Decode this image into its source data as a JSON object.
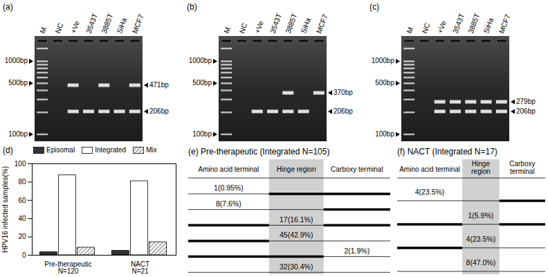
{
  "gels": [
    {
      "label": "(a)",
      "lanes": [
        "M",
        "NC",
        "+Ve",
        "3543T",
        "3885T",
        "SiHa",
        "MCF7"
      ],
      "bands": [
        [
          100,
          200,
          300,
          400,
          500,
          600,
          700,
          800,
          900,
          1000,
          1500
        ],
        [],
        [
          471,
          206
        ],
        [
          206
        ],
        [
          471,
          206
        ],
        [
          206
        ],
        [
          471,
          206
        ]
      ],
      "markers": [
        {
          "value": 1000,
          "label": "1000bp"
        },
        {
          "value": 500,
          "label": "500bp"
        },
        {
          "value": 100,
          "label": "100bp"
        }
      ],
      "band_labels": [
        {
          "value": 471,
          "label": "471bp"
        },
        {
          "value": 206,
          "label": "206bp"
        }
      ]
    },
    {
      "label": "(b)",
      "lanes": [
        "M",
        "NC",
        "+Ve",
        "3543T",
        "3885T",
        "SiHa",
        "MCF7"
      ],
      "bands": [
        [
          100,
          200,
          300,
          400,
          500,
          600,
          700,
          800,
          900,
          1000,
          1500
        ],
        [],
        [
          206
        ],
        [
          206
        ],
        [
          370,
          206
        ],
        [
          206
        ],
        [
          370
        ]
      ],
      "markers": [
        {
          "value": 1000,
          "label": "1000bp"
        },
        {
          "value": 500,
          "label": "500bp"
        },
        {
          "value": 100,
          "label": "100bp"
        }
      ],
      "band_labels": [
        {
          "value": 370,
          "label": "370bp"
        },
        {
          "value": 206,
          "label": "206bp"
        }
      ]
    },
    {
      "label": "(c)",
      "lanes": [
        "M",
        "NC",
        "+Ve",
        "3543T",
        "3885T",
        "SiHa",
        "MCF7"
      ],
      "bands": [
        [
          100,
          200,
          300,
          400,
          500,
          600,
          700,
          800,
          900,
          1000,
          1500
        ],
        [],
        [
          279,
          206
        ],
        [
          279,
          206
        ],
        [
          279,
          206
        ],
        [
          279,
          206
        ],
        [
          279,
          206
        ]
      ],
      "markers": [
        {
          "value": 1000,
          "label": "1000bp"
        },
        {
          "value": 500,
          "label": "500bp"
        },
        {
          "value": 100,
          "label": "100bp"
        }
      ],
      "band_labels": [
        {
          "value": 279,
          "label": "279bp"
        },
        {
          "value": 206,
          "label": "206bp"
        }
      ]
    }
  ],
  "chart_data": {
    "type": "bar",
    "title": "(d)",
    "categories": [
      "Pre-therapeutic\nN=120",
      "NACT\nN=21"
    ],
    "series": [
      {
        "name": "Episomal",
        "color": "#333333",
        "values": [
          3.3,
          4.8
        ]
      },
      {
        "name": "Integrated",
        "color": "#ffffff",
        "values": [
          87.5,
          81
        ]
      },
      {
        "name": "Mix",
        "color": "#555555",
        "line_style": "hatched",
        "values": [
          8.3,
          14.3
        ]
      }
    ],
    "y_label": "HPV16 infected samples(%)",
    "ylim": [
      0,
      100
    ],
    "yticks": [
      0,
      20,
      40,
      60,
      80,
      100
    ],
    "legend": "top",
    "grid": false
  },
  "diagrams": [
    {
      "label": "(e)",
      "title": "Pre-therapeutic (Integrated N=105)",
      "columns": [
        "Amino acid terminal",
        "Hinge region",
        "Carboxy terminal"
      ],
      "rows": [
        {
          "text": "1(0.95%)",
          "region": 0,
          "retained": [
            1,
            2
          ]
        },
        {
          "text": "8(7.6%)",
          "region": 0,
          "retained": [
            2
          ]
        },
        {
          "text": "17(16.1%)",
          "region": 1,
          "retained": [
            0,
            2
          ]
        },
        {
          "text": "45(42.9%)",
          "region": 1,
          "retained": [
            0
          ]
        },
        {
          "text": "2(1.9%)",
          "region": 2,
          "retained": [
            0,
            1
          ]
        },
        {
          "text": "32(30.4%)",
          "region": 1,
          "retained": []
        }
      ]
    },
    {
      "label": "(f)",
      "title": "NACT (Integrated N=17)",
      "columns": [
        "Amino acid terminal",
        "Hinge\nregion",
        "Carboxy\nterminal"
      ],
      "rows": [
        {
          "text": "4(23.5%)",
          "region": 0,
          "retained": [
            2
          ]
        },
        {
          "text": "1(5.9%)",
          "region": 1,
          "retained": [
            0,
            2
          ]
        },
        {
          "text": "4(23.5%)",
          "region": 1,
          "retained": [
            0
          ]
        },
        {
          "text": "8(47.0%)",
          "region": 1,
          "retained": []
        }
      ]
    }
  ]
}
